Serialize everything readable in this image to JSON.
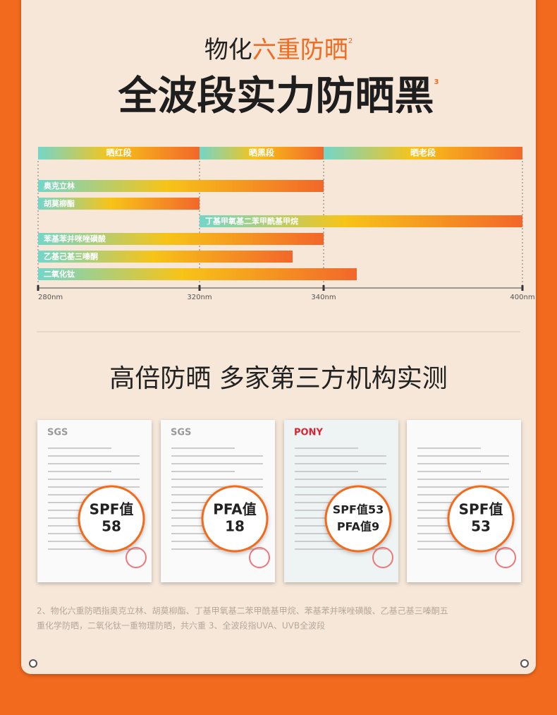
{
  "header": {
    "line1_prefix": "物化",
    "line1_highlight": "六重防晒",
    "line1_note": "2",
    "line2": "全波段实力防晒黑",
    "line2_note": "3"
  },
  "spectrum": {
    "bands": [
      {
        "label": "晒红段",
        "start": 280,
        "end": 320
      },
      {
        "label": "晒黑段",
        "start": 320,
        "end": 340
      },
      {
        "label": "晒老段",
        "start": 340,
        "end": 400
      }
    ],
    "bars": [
      {
        "label": "奥克立林",
        "start": 280,
        "end": 340
      },
      {
        "label": "胡莫柳酯",
        "start": 280,
        "end": 320
      },
      {
        "label": "丁基甲氧基二苯甲酰基甲烷",
        "start": 320,
        "end": 400
      },
      {
        "label": "苯基苯并咪唑磺酸",
        "start": 280,
        "end": 340
      },
      {
        "label": "乙基己基三嗪酮",
        "start": 280,
        "end": 335
      },
      {
        "label": "二氧化钛",
        "start": 280,
        "end": 350
      }
    ],
    "ticks": [
      {
        "value": 280,
        "label": "280nm"
      },
      {
        "value": 320,
        "label": "320nm"
      },
      {
        "value": 340,
        "label": "340nm"
      },
      {
        "value": 400,
        "label": "400nm"
      }
    ]
  },
  "section2": {
    "title": "高倍防晒 多家第三方机构实测"
  },
  "certificates": [
    {
      "logo": "SGS",
      "lines": [
        "SPF值",
        "58"
      ]
    },
    {
      "logo": "SGS",
      "lines": [
        "PFA值",
        "18"
      ]
    },
    {
      "logo": "PONY",
      "lines": [
        "SPF值53",
        "PFA值9"
      ]
    },
    {
      "logo": "",
      "lines": [
        "SPF值",
        "53"
      ]
    }
  ],
  "footnote": {
    "lines": [
      "2、物化六重防晒指奥克立林、胡莫柳酯、丁基甲氧基二苯甲酰基甲烷、苯基苯并咪唑磺酸、乙基己基三嗪酮五",
      "重化学防晒，二氧化钛一重物理防晒，共六重   3、全波段指UVA、UVB全波段"
    ]
  }
}
